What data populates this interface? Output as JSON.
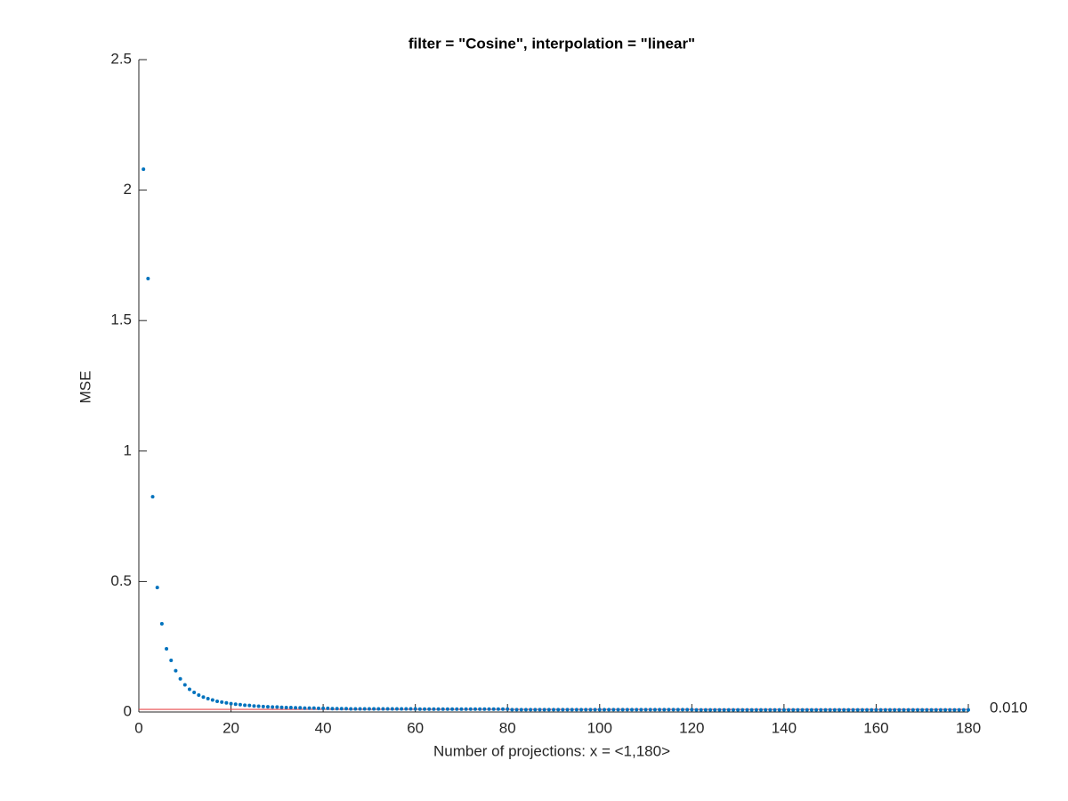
{
  "chart_data": {
    "type": "scatter",
    "title": "filter = \"Cosine\", interpolation = \"linear\"",
    "x_label": "Number of projections: x = <1,180>",
    "y_label": "MSE",
    "color": "#0072bd",
    "x": [
      1,
      2,
      3,
      4,
      5,
      6,
      7,
      8,
      9,
      10,
      11,
      12,
      13,
      14,
      15,
      16,
      17,
      18,
      19,
      20,
      21,
      22,
      23,
      24,
      25,
      26,
      27,
      28,
      29,
      30,
      31,
      32,
      33,
      34,
      35,
      36,
      37,
      38,
      39,
      40,
      41,
      42,
      43,
      44,
      45,
      46,
      47,
      48,
      49,
      50,
      51,
      52,
      53,
      54,
      55,
      56,
      57,
      58,
      59,
      60,
      61,
      62,
      63,
      64,
      65,
      66,
      67,
      68,
      69,
      70,
      71,
      72,
      73,
      74,
      75,
      76,
      77,
      78,
      79,
      80,
      81,
      82,
      83,
      84,
      85,
      86,
      87,
      88,
      89,
      90,
      91,
      92,
      93,
      94,
      95,
      96,
      97,
      98,
      99,
      100,
      101,
      102,
      103,
      104,
      105,
      106,
      107,
      108,
      109,
      110,
      111,
      112,
      113,
      114,
      115,
      116,
      117,
      118,
      119,
      120,
      121,
      122,
      123,
      124,
      125,
      126,
      127,
      128,
      129,
      130,
      131,
      132,
      133,
      134,
      135,
      136,
      137,
      138,
      139,
      140,
      141,
      142,
      143,
      144,
      145,
      146,
      147,
      148,
      149,
      150,
      151,
      152,
      153,
      154,
      155,
      156,
      157,
      158,
      159,
      160,
      161,
      162,
      163,
      164,
      165,
      166,
      167,
      168,
      169,
      170,
      171,
      172,
      173,
      174,
      175,
      176,
      177,
      178,
      179,
      180
    ],
    "values": [
      2.08,
      1.661,
      0.825,
      0.477,
      0.338,
      0.242,
      0.198,
      0.158,
      0.127,
      0.104,
      0.087,
      0.075,
      0.065,
      0.057,
      0.051,
      0.046,
      0.041,
      0.038,
      0.035,
      0.032,
      0.03,
      0.028,
      0.026,
      0.025,
      0.023,
      0.022,
      0.021,
      0.02,
      0.019,
      0.019,
      0.018,
      0.017,
      0.017,
      0.016,
      0.016,
      0.015,
      0.015,
      0.015,
      0.014,
      0.014,
      0.014,
      0.013,
      0.013,
      0.013,
      0.013,
      0.012,
      0.012,
      0.012,
      0.012,
      0.012,
      0.012,
      0.012,
      0.012,
      0.012,
      0.012,
      0.012,
      0.012,
      0.012,
      0.012,
      0.012,
      0.011,
      0.011,
      0.011,
      0.011,
      0.011,
      0.011,
      0.011,
      0.011,
      0.011,
      0.011,
      0.011,
      0.011,
      0.011,
      0.011,
      0.011,
      0.011,
      0.011,
      0.011,
      0.011,
      0.011,
      0.009,
      0.009,
      0.009,
      0.009,
      0.009,
      0.009,
      0.009,
      0.009,
      0.009,
      0.009,
      0.009,
      0.009,
      0.009,
      0.009,
      0.009,
      0.009,
      0.009,
      0.009,
      0.009,
      0.009,
      0.009,
      0.009,
      0.009,
      0.009,
      0.009,
      0.009,
      0.009,
      0.009,
      0.009,
      0.009,
      0.009,
      0.009,
      0.009,
      0.009,
      0.009,
      0.009,
      0.009,
      0.009,
      0.009,
      0.009,
      0.008,
      0.008,
      0.008,
      0.008,
      0.008,
      0.008,
      0.008,
      0.008,
      0.008,
      0.008,
      0.008,
      0.008,
      0.008,
      0.008,
      0.008,
      0.008,
      0.008,
      0.008,
      0.008,
      0.008,
      0.008,
      0.008,
      0.008,
      0.008,
      0.008,
      0.008,
      0.008,
      0.008,
      0.008,
      0.008,
      0.008,
      0.008,
      0.008,
      0.008,
      0.008,
      0.008,
      0.008,
      0.008,
      0.008,
      0.008,
      0.008,
      0.008,
      0.008,
      0.008,
      0.008,
      0.008,
      0.008,
      0.008,
      0.008,
      0.008,
      0.008,
      0.008,
      0.008,
      0.008,
      0.008,
      0.008,
      0.008,
      0.008,
      0.008,
      0.008
    ],
    "threshold": {
      "value": 0.01,
      "label": "0.010",
      "color": "#e8474a"
    },
    "xlim": [
      0,
      180
    ],
    "xticks": [
      0,
      20,
      40,
      60,
      80,
      100,
      120,
      140,
      160,
      180
    ],
    "ylim": [
      0,
      2.5
    ],
    "yticks": [
      0,
      0.5,
      1,
      1.5,
      2,
      2.5
    ]
  }
}
